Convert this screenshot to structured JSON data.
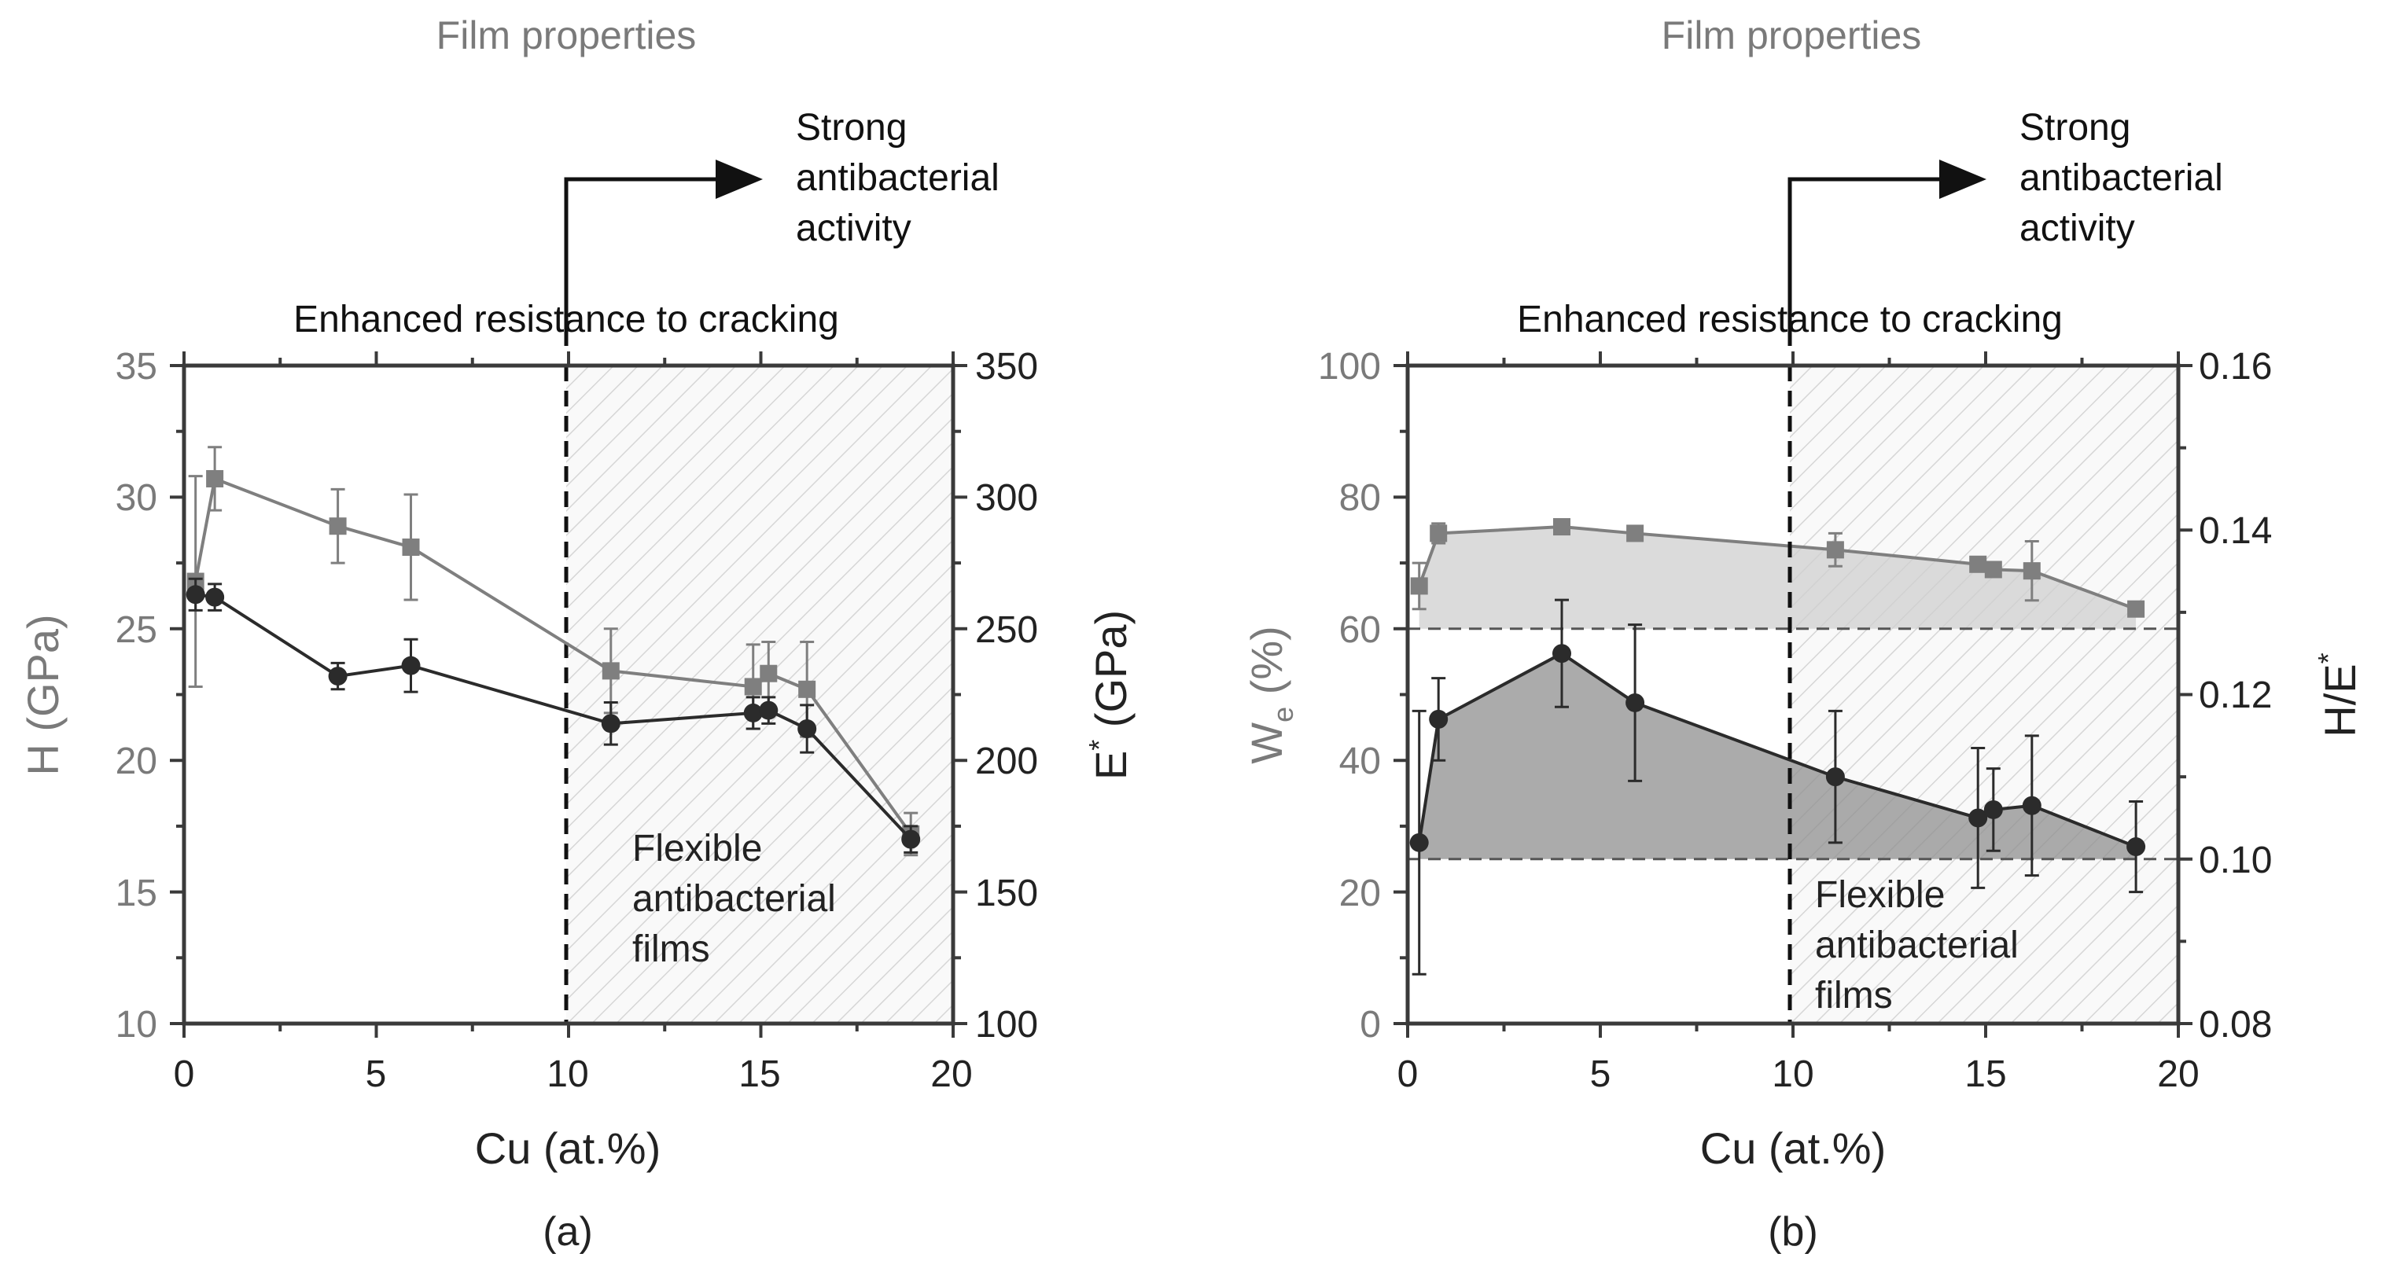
{
  "colors": {
    "gray_series": "#7f7f7f",
    "black_series": "#2b2b2b",
    "grey_text": "#7a7a7a",
    "dark_text": "#222222",
    "fill_light": "#cfcfcf",
    "fill_dark": "#8f8f8f"
  },
  "chart_data": [
    {
      "type": "line",
      "panel_label": "(a)",
      "top_title": "Film properties",
      "annotation_strong": [
        "Strong",
        "antibacterial",
        "activity"
      ],
      "annotation_enhanced": "Enhanced resistance to cracking",
      "annotation_flexible": [
        "Flexible",
        "antibacterial",
        "films"
      ],
      "threshold_x": 10,
      "xlabel": "Cu (at.%)",
      "xlim": [
        0,
        20
      ],
      "xticks": [
        "0",
        "5",
        "10",
        "15",
        "20"
      ],
      "ylabel_left": "H (GPa)",
      "ylim_left": [
        10,
        35
      ],
      "yticks_left": [
        "10",
        "15",
        "20",
        "25",
        "30",
        "35"
      ],
      "ylabel_right_base": "E",
      "ylabel_right_sup": "*",
      "ylabel_right_rest": " (GPa)",
      "ylim_right": [
        100,
        350
      ],
      "yticks_right": [
        "100",
        "150",
        "200",
        "250",
        "300",
        "350"
      ],
      "series": [
        {
          "name": "E* (GPa)",
          "axis": "right",
          "marker": "square",
          "color": "#7f7f7f",
          "x": [
            0.3,
            0.8,
            4.0,
            5.9,
            11.1,
            14.8,
            15.2,
            16.2,
            18.9
          ],
          "y": [
            268,
            307,
            289,
            281,
            234,
            228,
            233,
            227,
            172
          ],
          "err": [
            40,
            12,
            14,
            20,
            16,
            16,
            12,
            18,
            8
          ]
        },
        {
          "name": "H (GPa)",
          "axis": "left",
          "marker": "circle",
          "color": "#2b2b2b",
          "x": [
            0.3,
            0.8,
            4.0,
            5.9,
            11.1,
            14.8,
            15.2,
            16.2,
            18.9
          ],
          "y": [
            26.3,
            26.2,
            23.2,
            23.6,
            21.4,
            21.8,
            21.9,
            21.2,
            17.0
          ],
          "err": [
            0.6,
            0.5,
            0.5,
            1.0,
            0.8,
            0.6,
            0.5,
            0.9,
            0.5
          ]
        }
      ]
    },
    {
      "type": "line",
      "panel_label": "(b)",
      "top_title": "Film properties",
      "annotation_strong": [
        "Strong",
        "antibacterial",
        "activity"
      ],
      "annotation_enhanced": "Enhanced resistance to cracking",
      "annotation_flexible": [
        "Flexible",
        "antibacterial",
        "films"
      ],
      "threshold_x": 10,
      "xlabel": "Cu (at.%)",
      "xlim": [
        0,
        20
      ],
      "xticks": [
        "0",
        "5",
        "10",
        "15",
        "20"
      ],
      "ylabel_left_base": "W",
      "ylabel_left_sub": "e",
      "ylabel_left_rest": " (%)",
      "ylim_left": [
        0,
        100
      ],
      "yticks_left": [
        "0",
        "20",
        "40",
        "60",
        "80",
        "100"
      ],
      "ylabel_right_base": "H/E",
      "ylabel_right_sup": "*",
      "ylim_right": [
        0.08,
        0.16
      ],
      "yticks_right": [
        "0.08",
        "0.10",
        "0.12",
        "0.14",
        "0.16"
      ],
      "baseline_left": 60,
      "baseline_right": 0.1,
      "series": [
        {
          "name": "We (%)",
          "axis": "left",
          "marker": "square",
          "color": "#7f7f7f",
          "x": [
            0.3,
            0.8,
            4.0,
            5.9,
            11.1,
            14.8,
            15.2,
            16.2,
            18.9
          ],
          "y": [
            66.5,
            74.5,
            75.5,
            74.5,
            72.0,
            69.8,
            69.0,
            68.8,
            63.0
          ],
          "err": [
            3.5,
            1.5,
            1.0,
            1.0,
            2.5,
            1.0,
            1.0,
            4.5,
            1.0
          ]
        },
        {
          "name": "H/E*",
          "axis": "right",
          "marker": "circle",
          "color": "#2b2b2b",
          "x": [
            0.3,
            0.8,
            4.0,
            5.9,
            11.1,
            14.8,
            15.2,
            16.2,
            18.9
          ],
          "y": [
            0.102,
            0.117,
            0.125,
            0.119,
            0.11,
            0.105,
            0.106,
            0.1065,
            0.1015
          ],
          "err": [
            0.016,
            0.005,
            0.0065,
            0.0095,
            0.008,
            0.0085,
            0.005,
            0.0085,
            0.0055
          ]
        }
      ]
    }
  ]
}
